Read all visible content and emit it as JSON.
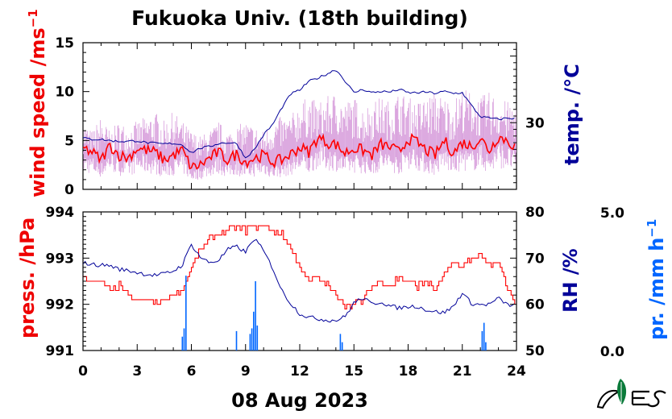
{
  "title": "Fukuoka Univ. (18th building)",
  "xlabel": "08 Aug 2023",
  "logo_text": "NES",
  "colors": {
    "red": "#ff0000",
    "navy": "#000099",
    "blue": "#0066ff",
    "violet": "#d9a0dd",
    "pink_text": "#ee0000",
    "green": "#0a7a3a",
    "black": "#000000"
  },
  "chart_data": [
    {
      "type": "line",
      "panel": "top",
      "x_ticks": [
        "0",
        "3",
        "6",
        "9",
        "12",
        "15",
        "18",
        "21",
        "24"
      ],
      "xlim": [
        0,
        24
      ],
      "left_axis": {
        "label": "wind speed /ms",
        "label_sup": "−1",
        "ylim": [
          0,
          15
        ],
        "ticks": [
          "0",
          "5",
          "10",
          "15"
        ]
      },
      "right_axis": {
        "label": "temp. /°C",
        "ticks": [
          "30"
        ],
        "ylim": [
          20,
          42
        ]
      },
      "series": [
        {
          "name": "wind speed (gust)",
          "color": "#d9a0dd",
          "x": [
            0,
            0.5,
            1,
            1.5,
            2,
            2.5,
            3,
            3.5,
            4,
            4.5,
            5,
            5.5,
            6,
            6.5,
            7,
            7.5,
            8,
            8.5,
            9,
            9.5,
            10,
            10.5,
            11,
            11.5,
            12,
            12.5,
            13,
            13.5,
            14,
            14.5,
            15,
            15.5,
            16,
            16.5,
            17,
            17.5,
            18,
            18.5,
            19,
            19.5,
            20,
            20.5,
            21,
            21.5,
            22,
            22.5,
            23,
            23.5,
            24
          ],
          "y": [
            7,
            6,
            7.5,
            6,
            7,
            6.5,
            7,
            7.5,
            8,
            7,
            8,
            7,
            6,
            5.5,
            6,
            7,
            6,
            6.5,
            7,
            6.5,
            6,
            7,
            7.5,
            7.5,
            9,
            9.5,
            9,
            9.5,
            10,
            9,
            9.5,
            8.5,
            9,
            9.5,
            9,
            10,
            9.5,
            9,
            9.5,
            10,
            9.5,
            9,
            10.5,
            10,
            9.5,
            10,
            9.5,
            9,
            9
          ]
        },
        {
          "name": "wind speed (mean)",
          "color": "#ff0000",
          "x": [
            0,
            0.5,
            1,
            1.5,
            2,
            2.5,
            3,
            3.5,
            4,
            4.5,
            5,
            5.5,
            6,
            6.5,
            7,
            7.5,
            8,
            8.5,
            9,
            9.5,
            10,
            10.5,
            11,
            11.5,
            12,
            12.5,
            13,
            13.5,
            14,
            14.5,
            15,
            15.5,
            16,
            16.5,
            17,
            17.5,
            18,
            18.5,
            19,
            19.5,
            20,
            20.5,
            21,
            21.5,
            22,
            22.5,
            23,
            23.5,
            24
          ],
          "y": [
            4.2,
            3.8,
            3.0,
            4.5,
            3.5,
            3.2,
            4.2,
            4.0,
            3.8,
            3.0,
            3.5,
            4.0,
            2.2,
            2.5,
            3.2,
            3.8,
            3.0,
            3.6,
            2.8,
            3.2,
            3.5,
            2.8,
            3.0,
            3.6,
            4.3,
            3.8,
            5.3,
            4.8,
            4.6,
            3.7,
            4.2,
            4.0,
            3.5,
            4.6,
            4.3,
            3.8,
            5.2,
            4.8,
            4.0,
            3.5,
            5.0,
            3.7,
            4.8,
            4.4,
            5.2,
            4.0,
            5.4,
            5.0,
            4.2
          ]
        },
        {
          "name": "temperature",
          "color": "#000099",
          "axis": "right",
          "x": [
            0,
            0.5,
            1,
            1.5,
            2,
            2.5,
            3,
            3.5,
            4,
            4.5,
            5,
            5.5,
            6,
            6.5,
            7,
            7.5,
            8,
            8.5,
            9,
            9.5,
            10,
            10.5,
            11,
            11.5,
            12,
            12.5,
            13,
            13.5,
            14,
            14.5,
            15,
            15.5,
            16,
            16.5,
            17,
            17.5,
            18,
            18.5,
            19,
            19.5,
            20,
            20.5,
            21,
            21.5,
            22,
            22.5,
            23,
            23.5,
            24
          ],
          "y": [
            27.7,
            27.5,
            27.5,
            27.3,
            27.2,
            27.2,
            27.3,
            27.0,
            26.9,
            26.8,
            26.9,
            26.7,
            25.5,
            26.2,
            26.4,
            26.9,
            27.0,
            26.9,
            24.7,
            26.0,
            28.2,
            29.7,
            32.2,
            34.3,
            34.9,
            36.2,
            36.7,
            37.3,
            38.0,
            36.3,
            34.5,
            35.0,
            34.5,
            34.7,
            34.6,
            35.0,
            34.5,
            34.5,
            34.6,
            34.4,
            34.7,
            34.4,
            34.5,
            32.6,
            30.9,
            30.7,
            30.5,
            30.7,
            30.6
          ]
        }
      ]
    },
    {
      "type": "line",
      "panel": "bottom",
      "x_ticks": [
        "0",
        "3",
        "6",
        "9",
        "12",
        "15",
        "18",
        "21",
        "24"
      ],
      "xlim": [
        0,
        24
      ],
      "left_axis": {
        "label": "press. /hPa",
        "ylim": [
          991,
          994
        ],
        "ticks": [
          "991",
          "992",
          "993",
          "994"
        ]
      },
      "right_axis": {
        "label": "RH /%",
        "ylim": [
          50,
          80
        ],
        "ticks": [
          "50",
          "60",
          "70",
          "80"
        ]
      },
      "far_right_axis": {
        "label": "pr. /mm h",
        "label_sup": "−1",
        "ylim": [
          0,
          5
        ],
        "ticks": [
          "0.0",
          "5.0"
        ]
      },
      "series": [
        {
          "name": "pressure",
          "color": "#ff0000",
          "x": [
            0,
            0.5,
            1,
            1.5,
            2,
            2.5,
            3,
            3.5,
            4,
            4.5,
            5,
            5.5,
            6,
            6.5,
            7,
            7.5,
            8,
            8.5,
            9,
            9.5,
            10,
            10.5,
            11,
            11.5,
            12,
            12.5,
            13,
            13.5,
            14,
            14.5,
            15,
            15.5,
            16,
            16.5,
            17,
            17.5,
            18,
            18.5,
            19,
            19.5,
            20,
            20.5,
            21,
            21.5,
            22,
            22.5,
            23,
            23.5,
            24
          ],
          "y": [
            992.6,
            992.5,
            992.5,
            992.3,
            992.4,
            992.2,
            992.1,
            992.1,
            992.0,
            992.1,
            992.2,
            992.3,
            992.8,
            993.2,
            993.4,
            993.5,
            993.6,
            993.7,
            993.6,
            993.7,
            993.7,
            993.6,
            993.5,
            993.2,
            992.8,
            992.5,
            992.6,
            992.4,
            992.2,
            992.0,
            992.0,
            992.1,
            992.4,
            992.5,
            992.4,
            992.6,
            992.5,
            992.4,
            992.5,
            992.3,
            992.7,
            992.9,
            992.8,
            993.0,
            993.1,
            992.8,
            992.9,
            992.3,
            992.0
          ]
        },
        {
          "name": "relative humidity",
          "color": "#000099",
          "axis": "right",
          "x": [
            0,
            0.5,
            1,
            1.5,
            2,
            2.5,
            3,
            3.5,
            4,
            4.5,
            5,
            5.5,
            6,
            6.5,
            7,
            7.5,
            8,
            8.5,
            9,
            9.5,
            10,
            10.5,
            11,
            11.5,
            12,
            12.5,
            13,
            13.5,
            14,
            14.5,
            15,
            15.5,
            16,
            16.5,
            17,
            17.5,
            18,
            18.5,
            19,
            19.5,
            20,
            20.5,
            21,
            21.5,
            22,
            22.5,
            23,
            23.5,
            24
          ],
          "y": [
            69.0,
            68.6,
            68.5,
            68.4,
            67.6,
            67.3,
            66.9,
            66.5,
            66.3,
            66.6,
            67.2,
            68.5,
            73.0,
            70.2,
            69.0,
            69.5,
            71.8,
            72.5,
            71.3,
            74.3,
            71.5,
            67.9,
            63.0,
            60.2,
            58.0,
            57.2,
            56.9,
            56.6,
            56.5,
            57.3,
            60.3,
            61.4,
            60.0,
            60.6,
            59.6,
            59.2,
            59.5,
            59.6,
            58.8,
            58.4,
            58.2,
            59.5,
            62.5,
            60.2,
            59.9,
            60.0,
            61.3,
            59.9,
            59.8
          ]
        },
        {
          "name": "precipitation",
          "type": "bar",
          "color": "#0066ff",
          "axis": "far_right",
          "x": [
            5.5,
            5.6,
            5.7,
            8.5,
            9.25,
            9.35,
            9.45,
            9.55,
            9.65,
            14.25,
            14.35,
            22.1,
            22.2,
            22.3
          ],
          "y": [
            0.5,
            0.8,
            2.7,
            0.7,
            0.6,
            0.8,
            1.4,
            2.5,
            0.9,
            0.6,
            0.3,
            0.7,
            1.0,
            0.3
          ]
        }
      ]
    }
  ]
}
